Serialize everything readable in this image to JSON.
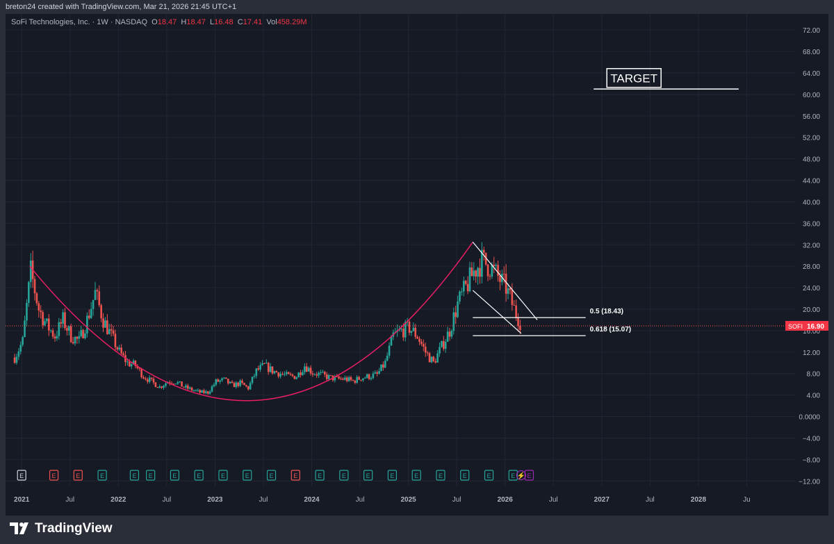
{
  "header": {
    "credit": "breton24 created with TradingView.com, Mar 21, 2026 21:45 UTC+1"
  },
  "legend": {
    "name": "SoFi Technologies, Inc. · 1W · NASDAQ",
    "o_label": "O",
    "o": "18.47",
    "h_label": "H",
    "h": "18.47",
    "l_label": "L",
    "l": "16.48",
    "c_label": "C",
    "c": "17.41",
    "vol_label": "Vol",
    "vol": "458.29M"
  },
  "footer": {
    "brand": "TradingView"
  },
  "annotations": {
    "target_label": "TARGET",
    "fib_05": "0.5 (18.43)",
    "fib_0618": "0.618 (15.07)"
  },
  "price_tag": {
    "symbol": "SOFI",
    "price": "16.90"
  },
  "colors": {
    "up": "#26a69a",
    "down": "#ef5350",
    "curve": "#e91e63",
    "bg": "#161a25",
    "frame": "#2a2e39",
    "text": "#b2b5be"
  },
  "chart_data": {
    "type": "candlestick",
    "interval": "1W",
    "y_axis": {
      "min": -13,
      "max": 75,
      "ticks": [
        -12,
        -8,
        -4,
        0,
        4,
        8,
        12,
        16,
        20,
        24,
        28,
        32,
        36,
        40,
        44,
        48,
        52,
        56,
        60,
        64,
        68,
        72
      ],
      "tick_labels": [
        "−12.00",
        "−8.00",
        "−4.00",
        "0.0000",
        "4.00",
        "8.00",
        "12.00",
        "16.00",
        "20.00",
        "24.00",
        "28.00",
        "32.00",
        "36.00",
        "40.00",
        "44.00",
        "48.00",
        "52.00",
        "56.00",
        "60.00",
        "64.00",
        "68.00",
        "72.00"
      ]
    },
    "x_axis": {
      "start": "2020-11",
      "end": "2029-01",
      "ticks": [
        {
          "date": "2021-01",
          "label": "2021"
        },
        {
          "date": "2021-07",
          "label": "Jul"
        },
        {
          "date": "2022-01",
          "label": "2022"
        },
        {
          "date": "2022-07",
          "label": "Jul"
        },
        {
          "date": "2023-01",
          "label": "2023"
        },
        {
          "date": "2023-07",
          "label": "Jul"
        },
        {
          "date": "2024-01",
          "label": "2024"
        },
        {
          "date": "2024-07",
          "label": "Jul"
        },
        {
          "date": "2025-01",
          "label": "2025"
        },
        {
          "date": "2025-07",
          "label": "Jul"
        },
        {
          "date": "2026-01",
          "label": "2026"
        },
        {
          "date": "2026-07",
          "label": "Jul"
        },
        {
          "date": "2027-01",
          "label": "2027"
        },
        {
          "date": "2027-07",
          "label": "Jul"
        },
        {
          "date": "2028-01",
          "label": "2028"
        },
        {
          "date": "2028-07",
          "label": "Ju"
        }
      ]
    },
    "price_path": [
      [
        "2020-12",
        11
      ],
      [
        "2021-01",
        14
      ],
      [
        "2021-02",
        27
      ],
      [
        "2021-03",
        20
      ],
      [
        "2021-04",
        17
      ],
      [
        "2021-05",
        15
      ],
      [
        "2021-06",
        18
      ],
      [
        "2021-07",
        15
      ],
      [
        "2021-08",
        14
      ],
      [
        "2021-09",
        18
      ],
      [
        "2021-10",
        23
      ],
      [
        "2021-11",
        18
      ],
      [
        "2021-12",
        15
      ],
      [
        "2022-01",
        12
      ],
      [
        "2022-02",
        10
      ],
      [
        "2022-03",
        9.5
      ],
      [
        "2022-04",
        7.5
      ],
      [
        "2022-05",
        6.5
      ],
      [
        "2022-06",
        5.5
      ],
      [
        "2022-07",
        6.5
      ],
      [
        "2022-08",
        6.5
      ],
      [
        "2022-09",
        5.5
      ],
      [
        "2022-10",
        5
      ],
      [
        "2022-11",
        4.5
      ],
      [
        "2022-12",
        4.5
      ],
      [
        "2023-01",
        6.5
      ],
      [
        "2023-02",
        6.8
      ],
      [
        "2023-03",
        5.8
      ],
      [
        "2023-04",
        6.2
      ],
      [
        "2023-05",
        5.3
      ],
      [
        "2023-06",
        8.5
      ],
      [
        "2023-07",
        9.5
      ],
      [
        "2023-08",
        8.5
      ],
      [
        "2023-09",
        8
      ],
      [
        "2023-10",
        7.5
      ],
      [
        "2023-11",
        7.5
      ],
      [
        "2023-12",
        9.5
      ],
      [
        "2024-01",
        8.2
      ],
      [
        "2024-02",
        7.8
      ],
      [
        "2024-03",
        7.3
      ],
      [
        "2024-04",
        7
      ],
      [
        "2024-05",
        7
      ],
      [
        "2024-06",
        6.6
      ],
      [
        "2024-07",
        7.2
      ],
      [
        "2024-08",
        7.5
      ],
      [
        "2024-09",
        7.8
      ],
      [
        "2024-10",
        10
      ],
      [
        "2024-11",
        15
      ],
      [
        "2024-12",
        16
      ],
      [
        "2025-01",
        16.5
      ],
      [
        "2025-02",
        15
      ],
      [
        "2025-03",
        12
      ],
      [
        "2025-04",
        10
      ],
      [
        "2025-05",
        13
      ],
      [
        "2025-06",
        16
      ],
      [
        "2025-07",
        21
      ],
      [
        "2025-08",
        24
      ],
      [
        "2025-09",
        27
      ],
      [
        "2025-10",
        29
      ],
      [
        "2025-11",
        28
      ],
      [
        "2025-12",
        26
      ],
      [
        "2026-01",
        24
      ],
      [
        "2026-02",
        20
      ],
      [
        "2026-03",
        16.9
      ]
    ],
    "current_price": 16.9,
    "earnings_markers": [
      {
        "date": "2021-01",
        "color": "#d1d4dc"
      },
      {
        "date": "2021-05",
        "color": "#ef5350"
      },
      {
        "date": "2021-08",
        "color": "#ef5350"
      },
      {
        "date": "2021-11",
        "color": "#26a69a"
      },
      {
        "date": "2022-03",
        "color": "#26a69a"
      },
      {
        "date": "2022-05",
        "color": "#26a69a"
      },
      {
        "date": "2022-08",
        "color": "#26a69a"
      },
      {
        "date": "2022-11",
        "color": "#26a69a"
      },
      {
        "date": "2023-02",
        "color": "#26a69a"
      },
      {
        "date": "2023-05",
        "color": "#26a69a"
      },
      {
        "date": "2023-08",
        "color": "#26a69a"
      },
      {
        "date": "2023-11",
        "color": "#ef5350"
      },
      {
        "date": "2024-02",
        "color": "#26a69a"
      },
      {
        "date": "2024-05",
        "color": "#26a69a"
      },
      {
        "date": "2024-08",
        "color": "#26a69a"
      },
      {
        "date": "2024-11",
        "color": "#26a69a"
      },
      {
        "date": "2025-02",
        "color": "#26a69a"
      },
      {
        "date": "2025-05",
        "color": "#26a69a"
      },
      {
        "date": "2025-08",
        "color": "#26a69a"
      },
      {
        "date": "2025-11",
        "color": "#26a69a"
      },
      {
        "date": "2026-02",
        "color": "#26a69a"
      },
      {
        "date": "2026-03",
        "color": "#9c27b0",
        "kind": "dividend"
      },
      {
        "date": "2026-04",
        "color": "#9c27b0"
      }
    ],
    "drawings": {
      "cup_curve": [
        [
          "2021-02",
          28
        ],
        [
          "2023-06",
          3
        ],
        [
          "2025-09",
          32.5
        ]
      ],
      "fib_05": {
        "from": "2025-09",
        "to": "2026-11",
        "y": 18.43
      },
      "fib_0618": {
        "from": "2025-09",
        "to": "2026-11",
        "y": 15.07
      },
      "channel_upper": [
        [
          "2025-09",
          32.5
        ],
        [
          "2026-05",
          18
        ]
      ],
      "channel_lower": [
        [
          "2025-09",
          23.5
        ],
        [
          "2026-03",
          15.5
        ]
      ],
      "target_line": {
        "from": "2026-12",
        "to": "2028-06",
        "y": 61
      },
      "target_label_y": 63
    }
  }
}
